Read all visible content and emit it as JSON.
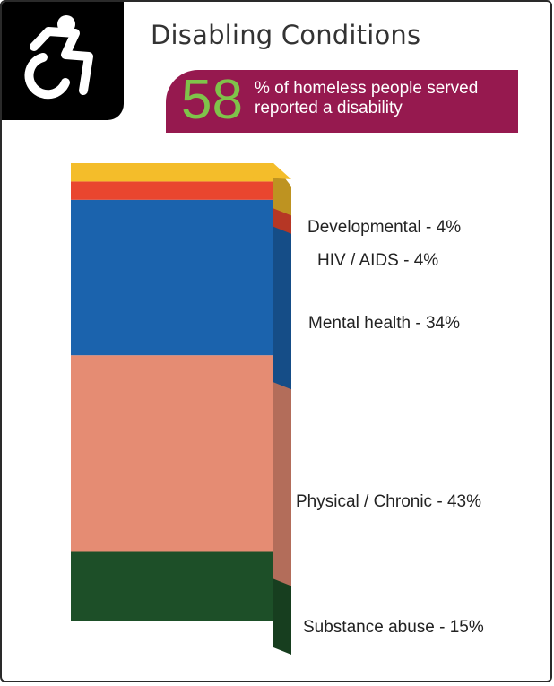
{
  "header": {
    "title": "Disabling Conditions",
    "icon": "accessibility-wheelchair-icon"
  },
  "banner": {
    "percent": "58",
    "text": "% of homeless people served reported a disability",
    "bg_color": "#96194f",
    "percent_color": "#7fc34a"
  },
  "chart_data": {
    "type": "bar",
    "stacked": true,
    "style": "3d single stacked column",
    "title": "",
    "xlabel": "",
    "ylabel": "",
    "ylim": [
      0,
      100
    ],
    "categories": [
      "Disabling conditions"
    ],
    "series": [
      {
        "name": "Substance abuse",
        "values": [
          15
        ],
        "label": "Substance abuse - 15%",
        "color": "#1d4f28"
      },
      {
        "name": "Physical / Chronic",
        "values": [
          43
        ],
        "label": "Physical / Chronic - 43%",
        "color": "#e58c73"
      },
      {
        "name": "Mental health",
        "values": [
          34
        ],
        "label": "Mental health - 34%",
        "color": "#1b63ad"
      },
      {
        "name": "HIV / AIDS",
        "values": [
          4
        ],
        "label": "HIV / AIDS - 4%",
        "color": "#e9462f"
      },
      {
        "name": "Developmental",
        "values": [
          4
        ],
        "label": "Developmental - 4%",
        "color": "#f4bd2a"
      }
    ]
  }
}
